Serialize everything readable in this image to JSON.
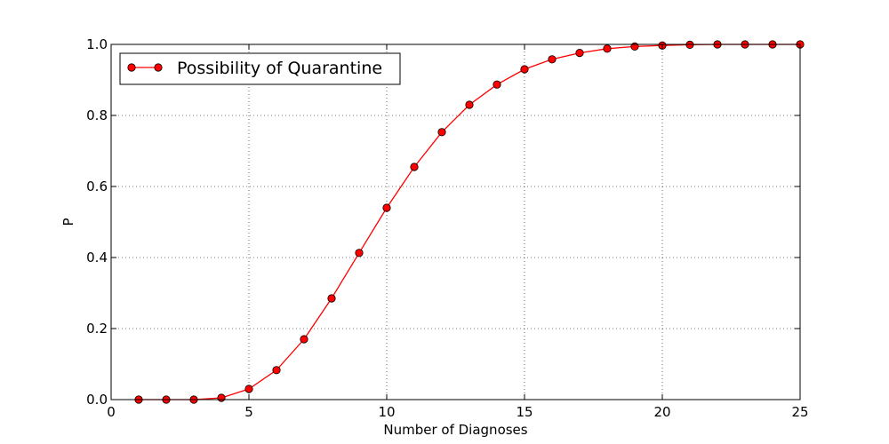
{
  "chart_data": {
    "type": "line",
    "xlabel": "Number of Diagnoses",
    "ylabel": "P",
    "xlim": [
      0,
      25
    ],
    "ylim": [
      0.0,
      1.0
    ],
    "x_ticks": [
      "0",
      "5",
      "10",
      "15",
      "20",
      "25"
    ],
    "y_ticks": [
      "0.0",
      "0.2",
      "0.4",
      "0.6",
      "0.8",
      "1.0"
    ],
    "grid": true,
    "legend_position": "top-left",
    "series": [
      {
        "name": "Possibility of Quarantine",
        "color": "#ff0000",
        "marker": "circle",
        "x": [
          1,
          2,
          3,
          4,
          5,
          6,
          7,
          8,
          9,
          10,
          11,
          12,
          13,
          14,
          15,
          16,
          17,
          18,
          19,
          20,
          21,
          22,
          23,
          24,
          25
        ],
        "y": [
          0.0,
          0.0,
          0.0,
          0.005,
          0.03,
          0.083,
          0.17,
          0.285,
          0.413,
          0.54,
          0.655,
          0.753,
          0.83,
          0.887,
          0.93,
          0.958,
          0.976,
          0.988,
          0.994,
          0.997,
          0.999,
          1.0,
          1.0,
          1.0,
          1.0
        ]
      }
    ]
  }
}
